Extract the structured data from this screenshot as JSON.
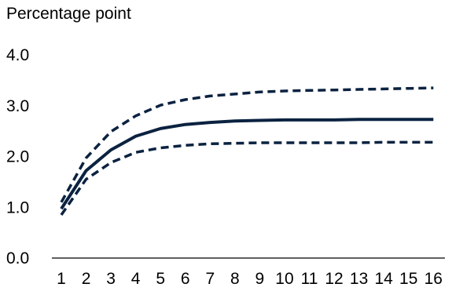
{
  "chart_data": {
    "type": "line",
    "title": "",
    "unit_label": "Percentage point",
    "xlabel": "",
    "ylabel": "",
    "x": [
      1,
      2,
      3,
      4,
      5,
      6,
      7,
      8,
      9,
      10,
      11,
      12,
      13,
      14,
      15,
      16
    ],
    "x_tick_labels": [
      "1",
      "2",
      "3",
      "4",
      "5",
      "6",
      "7",
      "8",
      "9",
      "10",
      "11",
      "12",
      "13",
      "14",
      "15",
      "16"
    ],
    "ylim": [
      0,
      4
    ],
    "y_ticks": [
      0,
      1,
      2,
      3,
      4
    ],
    "y_tick_labels": [
      "0.0",
      "1.0",
      "2.0",
      "3.0",
      "4.0"
    ],
    "grid": false,
    "legend": "none",
    "series": [
      {
        "style": "solid",
        "color": "#0b2240",
        "values": [
          0.97,
          1.72,
          2.13,
          2.4,
          2.55,
          2.63,
          2.67,
          2.7,
          2.71,
          2.72,
          2.72,
          2.72,
          2.73,
          2.73,
          2.73,
          2.73
        ]
      },
      {
        "style": "dashed",
        "color": "#0b2240",
        "values": [
          1.1,
          1.97,
          2.49,
          2.8,
          3.01,
          3.12,
          3.19,
          3.23,
          3.27,
          3.29,
          3.3,
          3.31,
          3.32,
          3.33,
          3.34,
          3.35
        ]
      },
      {
        "style": "dashed",
        "color": "#0b2240",
        "values": [
          0.85,
          1.55,
          1.88,
          2.08,
          2.17,
          2.22,
          2.25,
          2.26,
          2.27,
          2.27,
          2.27,
          2.27,
          2.27,
          2.28,
          2.28,
          2.28
        ]
      }
    ]
  }
}
